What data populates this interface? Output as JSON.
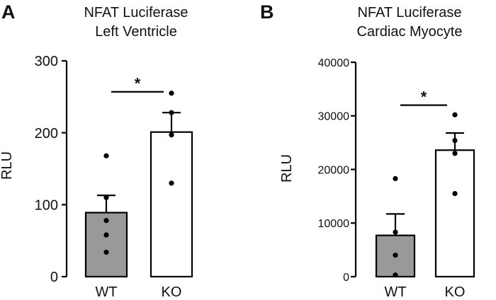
{
  "colors": {
    "wt_fill": "#999999",
    "ko_fill": "#ffffff",
    "stroke": "#000000",
    "text": "#111111"
  },
  "chart_data": [
    {
      "panel": "A",
      "type": "bar",
      "title_lines": [
        "NFAT  Luciferase",
        "Left Ventricle"
      ],
      "xlabel": "",
      "ylabel": "RLU",
      "ylim": [
        0,
        300
      ],
      "yticks": [
        0,
        100,
        200,
        300
      ],
      "categories": [
        "WT",
        "KO"
      ],
      "values": [
        89,
        201
      ],
      "error": [
        24,
        27
      ],
      "fills": [
        "#999999",
        "#ffffff"
      ],
      "points": [
        [
          168,
          110,
          78,
          58,
          34
        ],
        [
          255,
          228,
          197,
          130
        ]
      ],
      "significance": {
        "from": 0,
        "to": 1,
        "y": 257,
        "label": "*"
      },
      "grid": false,
      "legend": "none"
    },
    {
      "panel": "B",
      "type": "bar",
      "title_lines": [
        "NFAT Luciferase",
        "Cardiac Myocyte"
      ],
      "xlabel": "",
      "ylabel": "RLU",
      "ylim": [
        0,
        40000
      ],
      "yticks": [
        0,
        10000,
        20000,
        30000,
        40000
      ],
      "categories": [
        "WT",
        "KO"
      ],
      "values": [
        7700,
        23600
      ],
      "error": [
        4000,
        3200
      ],
      "fills": [
        "#999999",
        "#ffffff"
      ],
      "points": [
        [
          18300,
          8300,
          4000,
          300
        ],
        [
          30200,
          25400,
          23000,
          15500
        ]
      ],
      "significance": {
        "from": 0,
        "to": 1,
        "y": 32000,
        "label": "*"
      },
      "grid": false,
      "legend": "none"
    }
  ]
}
